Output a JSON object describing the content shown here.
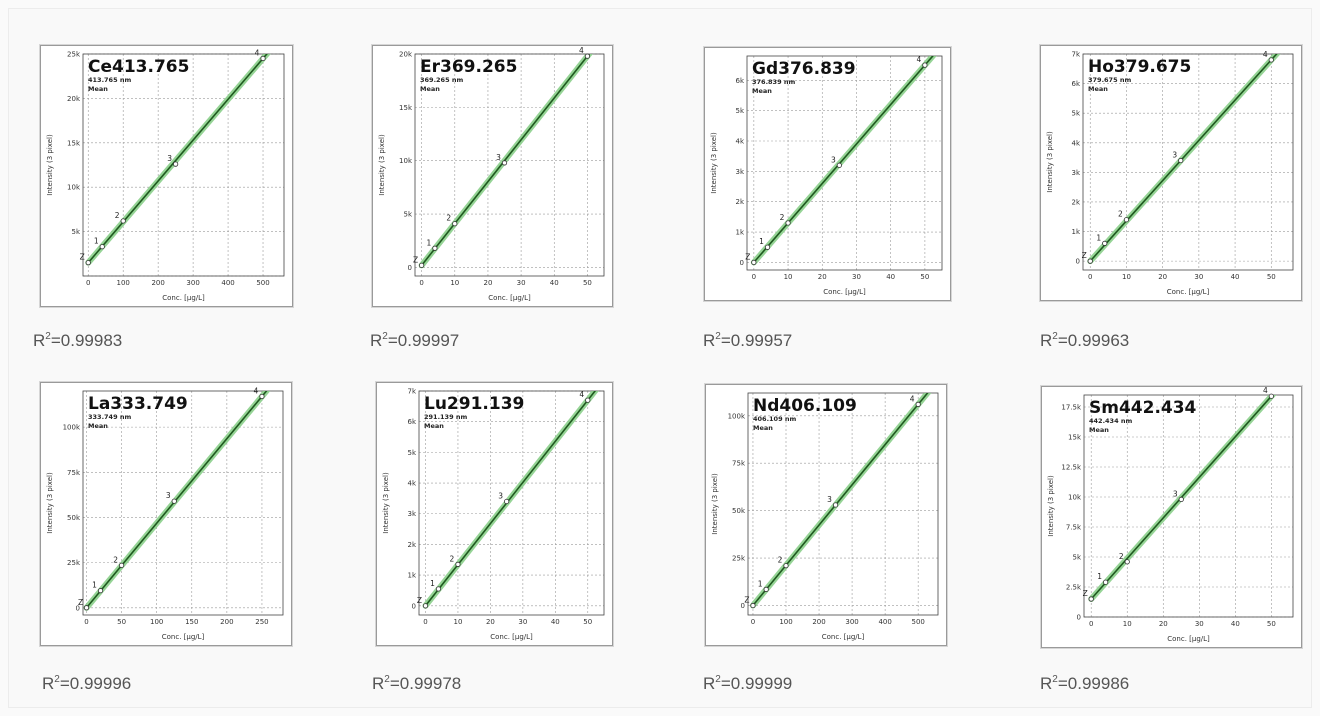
{
  "chart_data": [
    {
      "type": "scatter",
      "title": "Ce413.765",
      "subtitle": "413.765 nm",
      "mean_label": "Mean",
      "xlabel": "Conc. [µg/L]",
      "ylabel": "Intensity (3 pixel)",
      "xlim": [
        -15,
        560
      ],
      "ylim": [
        0,
        25000
      ],
      "xticks": [
        0,
        100,
        200,
        300,
        400,
        500
      ],
      "yticks": [
        0,
        5000,
        10000,
        15000,
        20000,
        25000
      ],
      "yticklabels": [
        "",
        "5k",
        "10k",
        "15k",
        "20k",
        "25k"
      ],
      "points": [
        {
          "label": "Z",
          "x": 0,
          "y": 1500
        },
        {
          "label": "1",
          "x": 40,
          "y": 3300
        },
        {
          "label": "2",
          "x": 100,
          "y": 6200
        },
        {
          "label": "3",
          "x": 250,
          "y": 12600
        },
        {
          "label": "4",
          "x": 500,
          "y": 24500
        }
      ],
      "r2_value": "=0.99983"
    },
    {
      "type": "scatter",
      "title": "Er369.265",
      "subtitle": "369.265 nm",
      "mean_label": "Mean",
      "xlabel": "Conc. [µg/L]",
      "ylabel": "Intensity (3 pixel)",
      "xlim": [
        -2,
        55
      ],
      "ylim": [
        -800,
        20000
      ],
      "xticks": [
        0,
        10,
        20,
        30,
        40,
        50
      ],
      "yticks": [
        0,
        5000,
        10000,
        15000,
        20000
      ],
      "yticklabels": [
        "0",
        "5k",
        "10k",
        "15k",
        "20k"
      ],
      "points": [
        {
          "label": "Z",
          "x": 0,
          "y": 200
        },
        {
          "label": "1",
          "x": 4,
          "y": 1800
        },
        {
          "label": "2",
          "x": 10,
          "y": 4100
        },
        {
          "label": "3",
          "x": 25,
          "y": 9800
        },
        {
          "label": "4",
          "x": 50,
          "y": 19800
        }
      ],
      "r2_value": "=0.99997"
    },
    {
      "type": "scatter",
      "title": "Gd376.839",
      "subtitle": "376.839 nm",
      "mean_label": "Mean",
      "xlabel": "Conc. [µg/L]",
      "ylabel": "Intensity (3 pixel)",
      "xlim": [
        -2,
        55
      ],
      "ylim": [
        -250,
        6800
      ],
      "xticks": [
        0,
        10,
        20,
        30,
        40,
        50
      ],
      "yticks": [
        0,
        1000,
        2000,
        3000,
        4000,
        5000,
        6000
      ],
      "yticklabels": [
        "0",
        "1k",
        "2k",
        "3k",
        "4k",
        "5k",
        "6k"
      ],
      "points": [
        {
          "label": "Z",
          "x": 0,
          "y": 0
        },
        {
          "label": "1",
          "x": 4,
          "y": 500
        },
        {
          "label": "2",
          "x": 10,
          "y": 1300
        },
        {
          "label": "3",
          "x": 25,
          "y": 3200
        },
        {
          "label": "4",
          "x": 50,
          "y": 6500
        }
      ],
      "r2_value": "=0.99957"
    },
    {
      "type": "scatter",
      "title": "Ho379.675",
      "subtitle": "379.675 nm",
      "mean_label": "Mean",
      "xlabel": "Conc. [µg/L]",
      "ylabel": "Intensity (3 pixel)",
      "xlim": [
        -2,
        56
      ],
      "ylim": [
        -300,
        7000
      ],
      "xticks": [
        0,
        10,
        20,
        30,
        40,
        50
      ],
      "yticks": [
        0,
        1000,
        2000,
        3000,
        4000,
        5000,
        6000,
        7000
      ],
      "yticklabels": [
        "0",
        "1k",
        "2k",
        "3k",
        "4k",
        "5k",
        "6k",
        "7k"
      ],
      "points": [
        {
          "label": "Z",
          "x": 0,
          "y": 0
        },
        {
          "label": "1",
          "x": 4,
          "y": 600
        },
        {
          "label": "2",
          "x": 10,
          "y": 1400
        },
        {
          "label": "3",
          "x": 25,
          "y": 3400
        },
        {
          "label": "4",
          "x": 50,
          "y": 6800
        }
      ],
      "r2_value": "=0.99963"
    },
    {
      "type": "scatter",
      "title": "La333.749",
      "subtitle": "333.749 nm",
      "mean_label": "Mean",
      "xlabel": "Conc. [µg/L]",
      "ylabel": "Intensity (3 pixel)",
      "xlim": [
        -5,
        280
      ],
      "ylim": [
        -4000,
        120000
      ],
      "xticks": [
        0,
        50,
        100,
        150,
        200,
        250
      ],
      "yticks": [
        0,
        25000,
        50000,
        75000,
        100000
      ],
      "yticklabels": [
        "0",
        "25k",
        "50k",
        "75k",
        "100k"
      ],
      "points": [
        {
          "label": "Z",
          "x": 0,
          "y": 0
        },
        {
          "label": "1",
          "x": 20,
          "y": 9500
        },
        {
          "label": "2",
          "x": 50,
          "y": 23500
        },
        {
          "label": "3",
          "x": 125,
          "y": 59000
        },
        {
          "label": "4",
          "x": 250,
          "y": 117000
        }
      ],
      "r2_value": "=0.99996"
    },
    {
      "type": "scatter",
      "title": "Lu291.139",
      "subtitle": "291.139 nm",
      "mean_label": "Mean",
      "xlabel": "Conc. [µg/L]",
      "ylabel": "Intensity (3 pixel)",
      "xlim": [
        -2,
        55
      ],
      "ylim": [
        -300,
        7000
      ],
      "xticks": [
        0,
        10,
        20,
        30,
        40,
        50
      ],
      "yticks": [
        0,
        1000,
        2000,
        3000,
        4000,
        5000,
        6000,
        7000
      ],
      "yticklabels": [
        "0",
        "1k",
        "2k",
        "3k",
        "4k",
        "5k",
        "6k",
        "7k"
      ],
      "points": [
        {
          "label": "Z",
          "x": 0,
          "y": 0
        },
        {
          "label": "1",
          "x": 4,
          "y": 550
        },
        {
          "label": "2",
          "x": 10,
          "y": 1350
        },
        {
          "label": "3",
          "x": 25,
          "y": 3400
        },
        {
          "label": "4",
          "x": 50,
          "y": 6700
        }
      ],
      "r2_value": "=0.99978"
    },
    {
      "type": "scatter",
      "title": "Nd406.109",
      "subtitle": "406.109 nm",
      "mean_label": "Mean",
      "xlabel": "Conc. [µg/L]",
      "ylabel": "Intensity (3 pixel)",
      "xlim": [
        -15,
        560
      ],
      "ylim": [
        -5000,
        112000
      ],
      "xticks": [
        0,
        100,
        200,
        300,
        400,
        500
      ],
      "yticks": [
        0,
        25000,
        50000,
        75000,
        100000
      ],
      "yticklabels": [
        "0",
        "25k",
        "50k",
        "75k",
        "100k"
      ],
      "points": [
        {
          "label": "Z",
          "x": 0,
          "y": 0
        },
        {
          "label": "1",
          "x": 40,
          "y": 8500
        },
        {
          "label": "2",
          "x": 100,
          "y": 21000
        },
        {
          "label": "3",
          "x": 250,
          "y": 53000
        },
        {
          "label": "4",
          "x": 500,
          "y": 106000
        }
      ],
      "r2_value": "=0.99999"
    },
    {
      "type": "scatter",
      "title": "Sm442.434",
      "subtitle": "442.434 nm",
      "mean_label": "Mean",
      "xlabel": "Conc. [µg/L]",
      "ylabel": "Intensity (3 pixel)",
      "xlim": [
        -2,
        56
      ],
      "ylim": [
        0,
        18500
      ],
      "xticks": [
        0,
        10,
        20,
        30,
        40,
        50
      ],
      "yticks": [
        0,
        2500,
        5000,
        7500,
        10000,
        12500,
        15000,
        17500
      ],
      "yticklabels": [
        "0",
        "2.5k",
        "5k",
        "7.5k",
        "10k",
        "12.5k",
        "15k",
        "17.5k"
      ],
      "points": [
        {
          "label": "Z",
          "x": 0,
          "y": 1500
        },
        {
          "label": "1",
          "x": 4,
          "y": 2900
        },
        {
          "label": "2",
          "x": 10,
          "y": 4600
        },
        {
          "label": "3",
          "x": 25,
          "y": 9800
        },
        {
          "label": "4",
          "x": 50,
          "y": 18400
        }
      ],
      "r2_value": "=0.99986"
    }
  ],
  "r2_prefix": "R",
  "r2_sup": "2",
  "colors": {
    "fit_line": "#1f5a1f",
    "band": "#8bd08b",
    "grid": "#9a9a9a"
  }
}
